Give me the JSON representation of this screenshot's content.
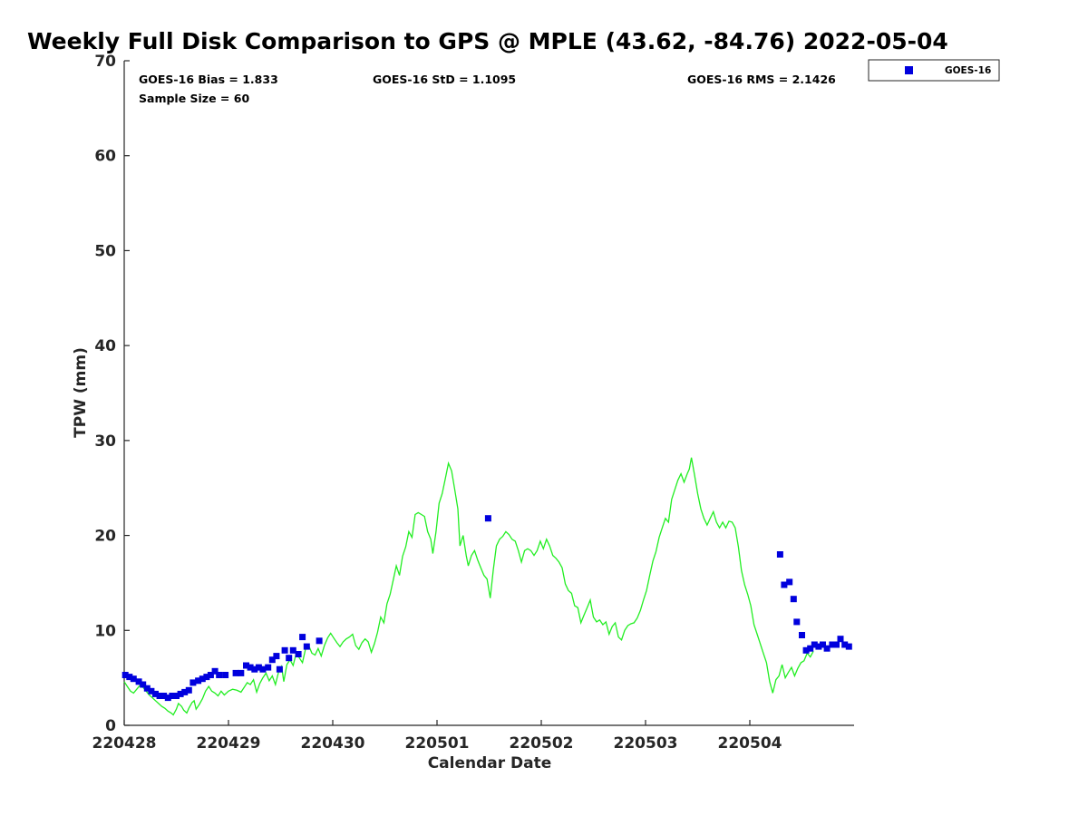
{
  "chart_data": {
    "type": "scatter",
    "title": "Weekly Full Disk Comparison to GPS @ MPLE (43.62, -84.76) 2022-05-04",
    "xlabel": "Calendar Date",
    "ylabel": "TPW (mm)",
    "xlim": [
      0,
      7
    ],
    "ylim": [
      0,
      70
    ],
    "x_ticks": [
      0,
      1,
      2,
      3,
      4,
      5,
      6
    ],
    "x_tick_labels": [
      "220428",
      "220429",
      "220430",
      "220501",
      "220502",
      "220503",
      "220504"
    ],
    "y_ticks": [
      0,
      10,
      20,
      30,
      40,
      50,
      60,
      70
    ],
    "y_tick_labels": [
      "0",
      "10",
      "20",
      "30",
      "40",
      "50",
      "60",
      "70"
    ],
    "grid": false,
    "legend_placement": "top-right outside",
    "stats": {
      "bias": "GOES-16 Bias = 1.833",
      "std": "GOES-16 StD = 1.1095",
      "rms": "GOES-16 RMS = 2.1426",
      "sample_size": "Sample Size = 60"
    },
    "series": [
      {
        "name": "GOES-16",
        "kind": "scatter",
        "color": "#0000dd",
        "points": [
          [
            0.01,
            5.3
          ],
          [
            0.05,
            5.1
          ],
          [
            0.09,
            4.9
          ],
          [
            0.14,
            4.6
          ],
          [
            0.18,
            4.3
          ],
          [
            0.22,
            3.9
          ],
          [
            0.26,
            3.6
          ],
          [
            0.3,
            3.3
          ],
          [
            0.34,
            3.1
          ],
          [
            0.38,
            3.1
          ],
          [
            0.42,
            2.9
          ],
          [
            0.46,
            3.1
          ],
          [
            0.5,
            3.1
          ],
          [
            0.54,
            3.3
          ],
          [
            0.58,
            3.5
          ],
          [
            0.62,
            3.7
          ],
          [
            0.66,
            4.5
          ],
          [
            0.71,
            4.7
          ],
          [
            0.75,
            4.9
          ],
          [
            0.79,
            5.1
          ],
          [
            0.83,
            5.3
          ],
          [
            0.87,
            5.7
          ],
          [
            0.91,
            5.3
          ],
          [
            0.97,
            5.3
          ],
          [
            1.07,
            5.5
          ],
          [
            1.12,
            5.5
          ],
          [
            1.17,
            6.3
          ],
          [
            1.21,
            6.1
          ],
          [
            1.25,
            5.9
          ],
          [
            1.29,
            6.1
          ],
          [
            1.33,
            5.9
          ],
          [
            1.38,
            6.1
          ],
          [
            1.42,
            6.9
          ],
          [
            1.46,
            7.3
          ],
          [
            1.49,
            5.9
          ],
          [
            1.54,
            7.9
          ],
          [
            1.58,
            7.1
          ],
          [
            1.62,
            7.9
          ],
          [
            1.67,
            7.5
          ],
          [
            1.71,
            9.3
          ],
          [
            1.75,
            8.3
          ],
          [
            1.87,
            8.9
          ],
          [
            3.49,
            21.8
          ],
          [
            6.29,
            18.0
          ],
          [
            6.33,
            14.8
          ],
          [
            6.38,
            15.1
          ],
          [
            6.42,
            13.3
          ],
          [
            6.45,
            10.9
          ],
          [
            6.5,
            9.5
          ],
          [
            6.54,
            7.9
          ],
          [
            6.58,
            8.1
          ],
          [
            6.62,
            8.5
          ],
          [
            6.66,
            8.3
          ],
          [
            6.7,
            8.5
          ],
          [
            6.74,
            8.1
          ],
          [
            6.79,
            8.5
          ],
          [
            6.83,
            8.5
          ],
          [
            6.87,
            9.1
          ],
          [
            6.91,
            8.5
          ],
          [
            6.95,
            8.3
          ]
        ]
      },
      {
        "kind": "line",
        "color": "#22ee22",
        "points": [
          [
            0.0,
            4.6
          ],
          [
            0.03,
            4.1
          ],
          [
            0.06,
            3.6
          ],
          [
            0.09,
            3.4
          ],
          [
            0.12,
            3.8
          ],
          [
            0.15,
            4.2
          ],
          [
            0.18,
            4.0
          ],
          [
            0.21,
            3.6
          ],
          [
            0.24,
            3.2
          ],
          [
            0.27,
            2.9
          ],
          [
            0.3,
            2.6
          ],
          [
            0.33,
            2.3
          ],
          [
            0.36,
            2.0
          ],
          [
            0.39,
            1.8
          ],
          [
            0.42,
            1.5
          ],
          [
            0.45,
            1.3
          ],
          [
            0.47,
            1.1
          ],
          [
            0.5,
            1.7
          ],
          [
            0.52,
            2.3
          ],
          [
            0.55,
            2.0
          ],
          [
            0.57,
            1.6
          ],
          [
            0.6,
            1.3
          ],
          [
            0.62,
            1.8
          ],
          [
            0.65,
            2.4
          ],
          [
            0.67,
            2.6
          ],
          [
            0.69,
            1.7
          ],
          [
            0.72,
            2.2
          ],
          [
            0.75,
            2.8
          ],
          [
            0.78,
            3.6
          ],
          [
            0.81,
            4.1
          ],
          [
            0.84,
            3.6
          ],
          [
            0.87,
            3.4
          ],
          [
            0.9,
            3.1
          ],
          [
            0.93,
            3.6
          ],
          [
            0.96,
            3.2
          ],
          [
            1.0,
            3.6
          ],
          [
            1.04,
            3.8
          ],
          [
            1.08,
            3.7
          ],
          [
            1.12,
            3.5
          ],
          [
            1.15,
            4.0
          ],
          [
            1.18,
            4.5
          ],
          [
            1.21,
            4.3
          ],
          [
            1.24,
            4.8
          ],
          [
            1.27,
            3.5
          ],
          [
            1.3,
            4.4
          ],
          [
            1.33,
            5.0
          ],
          [
            1.36,
            5.5
          ],
          [
            1.39,
            4.7
          ],
          [
            1.42,
            5.2
          ],
          [
            1.45,
            4.3
          ],
          [
            1.48,
            5.6
          ],
          [
            1.51,
            6.2
          ],
          [
            1.53,
            4.6
          ],
          [
            1.56,
            6.4
          ],
          [
            1.59,
            6.9
          ],
          [
            1.62,
            6.3
          ],
          [
            1.65,
            7.6
          ],
          [
            1.68,
            7.1
          ],
          [
            1.71,
            6.6
          ],
          [
            1.74,
            8.1
          ],
          [
            1.77,
            8.4
          ],
          [
            1.8,
            7.6
          ],
          [
            1.83,
            7.4
          ],
          [
            1.86,
            8.1
          ],
          [
            1.89,
            7.3
          ],
          [
            1.92,
            8.4
          ],
          [
            1.95,
            9.2
          ],
          [
            1.98,
            9.7
          ],
          [
            2.01,
            9.2
          ],
          [
            2.04,
            8.7
          ],
          [
            2.07,
            8.3
          ],
          [
            2.1,
            8.8
          ],
          [
            2.13,
            9.1
          ],
          [
            2.16,
            9.3
          ],
          [
            2.19,
            9.6
          ],
          [
            2.22,
            8.4
          ],
          [
            2.25,
            8.0
          ],
          [
            2.28,
            8.7
          ],
          [
            2.31,
            9.1
          ],
          [
            2.34,
            8.8
          ],
          [
            2.37,
            7.7
          ],
          [
            2.4,
            8.6
          ],
          [
            2.43,
            9.8
          ],
          [
            2.46,
            11.4
          ],
          [
            2.49,
            10.8
          ],
          [
            2.52,
            12.8
          ],
          [
            2.55,
            13.8
          ],
          [
            2.58,
            15.3
          ],
          [
            2.61,
            16.8
          ],
          [
            2.64,
            15.8
          ],
          [
            2.67,
            17.8
          ],
          [
            2.7,
            18.8
          ],
          [
            2.73,
            20.4
          ],
          [
            2.76,
            19.8
          ],
          [
            2.79,
            22.2
          ],
          [
            2.82,
            22.4
          ],
          [
            2.85,
            22.2
          ],
          [
            2.88,
            22.0
          ],
          [
            2.91,
            20.4
          ],
          [
            2.94,
            19.6
          ],
          [
            2.96,
            18.1
          ],
          [
            2.99,
            20.4
          ],
          [
            3.02,
            23.4
          ],
          [
            3.05,
            24.4
          ],
          [
            3.08,
            26.0
          ],
          [
            3.11,
            27.6
          ],
          [
            3.14,
            26.8
          ],
          [
            3.17,
            24.8
          ],
          [
            3.2,
            22.8
          ],
          [
            3.22,
            18.9
          ],
          [
            3.25,
            20.0
          ],
          [
            3.28,
            17.9
          ],
          [
            3.3,
            16.8
          ],
          [
            3.33,
            17.9
          ],
          [
            3.36,
            18.4
          ],
          [
            3.39,
            17.4
          ],
          [
            3.42,
            16.6
          ],
          [
            3.45,
            15.8
          ],
          [
            3.48,
            15.4
          ],
          [
            3.51,
            13.4
          ],
          [
            3.54,
            16.4
          ],
          [
            3.57,
            18.9
          ],
          [
            3.6,
            19.6
          ],
          [
            3.63,
            19.9
          ],
          [
            3.66,
            20.4
          ],
          [
            3.69,
            20.1
          ],
          [
            3.72,
            19.6
          ],
          [
            3.75,
            19.4
          ],
          [
            3.78,
            18.4
          ],
          [
            3.81,
            17.2
          ],
          [
            3.84,
            18.4
          ],
          [
            3.87,
            18.6
          ],
          [
            3.9,
            18.4
          ],
          [
            3.93,
            17.9
          ],
          [
            3.96,
            18.4
          ],
          [
            3.99,
            19.4
          ],
          [
            4.02,
            18.6
          ],
          [
            4.05,
            19.6
          ],
          [
            4.08,
            18.9
          ],
          [
            4.11,
            17.9
          ],
          [
            4.14,
            17.6
          ],
          [
            4.17,
            17.2
          ],
          [
            4.2,
            16.6
          ],
          [
            4.23,
            14.9
          ],
          [
            4.26,
            14.2
          ],
          [
            4.29,
            13.9
          ],
          [
            4.32,
            12.6
          ],
          [
            4.35,
            12.4
          ],
          [
            4.38,
            10.8
          ],
          [
            4.41,
            11.6
          ],
          [
            4.44,
            12.4
          ],
          [
            4.47,
            13.2
          ],
          [
            4.5,
            11.4
          ],
          [
            4.53,
            10.9
          ],
          [
            4.56,
            11.1
          ],
          [
            4.59,
            10.6
          ],
          [
            4.62,
            10.9
          ],
          [
            4.65,
            9.6
          ],
          [
            4.68,
            10.4
          ],
          [
            4.71,
            10.8
          ],
          [
            4.74,
            9.3
          ],
          [
            4.77,
            9.0
          ],
          [
            4.8,
            10.0
          ],
          [
            4.83,
            10.5
          ],
          [
            4.86,
            10.7
          ],
          [
            4.89,
            10.8
          ],
          [
            4.92,
            11.3
          ],
          [
            4.95,
            12.1
          ],
          [
            4.98,
            13.2
          ],
          [
            5.01,
            14.2
          ],
          [
            5.04,
            15.8
          ],
          [
            5.07,
            17.3
          ],
          [
            5.1,
            18.3
          ],
          [
            5.13,
            19.8
          ],
          [
            5.16,
            20.8
          ],
          [
            5.19,
            21.8
          ],
          [
            5.22,
            21.4
          ],
          [
            5.25,
            23.8
          ],
          [
            5.28,
            24.8
          ],
          [
            5.31,
            25.8
          ],
          [
            5.34,
            26.5
          ],
          [
            5.37,
            25.6
          ],
          [
            5.4,
            26.5
          ],
          [
            5.42,
            27.0
          ],
          [
            5.44,
            28.2
          ],
          [
            5.47,
            26.4
          ],
          [
            5.5,
            24.4
          ],
          [
            5.53,
            22.8
          ],
          [
            5.56,
            21.8
          ],
          [
            5.59,
            21.1
          ],
          [
            5.62,
            21.8
          ],
          [
            5.65,
            22.5
          ],
          [
            5.68,
            21.4
          ],
          [
            5.71,
            20.8
          ],
          [
            5.74,
            21.4
          ],
          [
            5.77,
            20.8
          ],
          [
            5.8,
            21.5
          ],
          [
            5.83,
            21.4
          ],
          [
            5.86,
            20.8
          ],
          [
            5.89,
            18.8
          ],
          [
            5.92,
            16.3
          ],
          [
            5.95,
            14.8
          ],
          [
            5.98,
            13.8
          ],
          [
            6.01,
            12.6
          ],
          [
            6.04,
            10.6
          ],
          [
            6.07,
            9.6
          ],
          [
            6.1,
            8.6
          ],
          [
            6.13,
            7.6
          ],
          [
            6.16,
            6.6
          ],
          [
            6.19,
            4.6
          ],
          [
            6.22,
            3.4
          ],
          [
            6.25,
            4.8
          ],
          [
            6.28,
            5.2
          ],
          [
            6.31,
            6.4
          ],
          [
            6.34,
            5.0
          ],
          [
            6.37,
            5.6
          ],
          [
            6.4,
            6.1
          ],
          [
            6.43,
            5.2
          ],
          [
            6.46,
            6.0
          ],
          [
            6.49,
            6.6
          ],
          [
            6.52,
            6.8
          ],
          [
            6.55,
            7.6
          ],
          [
            6.58,
            7.2
          ],
          [
            6.61,
            7.8
          ]
        ]
      }
    ]
  }
}
